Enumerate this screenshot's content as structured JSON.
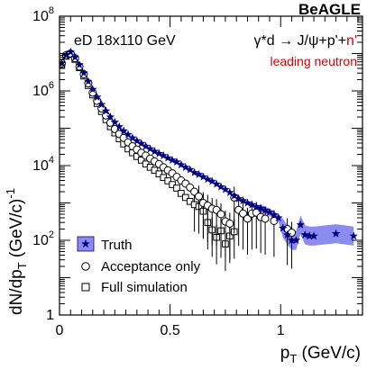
{
  "brand": "BeAGLE",
  "beam_label": "eD 18x110 GeV",
  "process_label": {
    "main": "γ*d → J/ψ+p'+",
    "suffix": "n'"
  },
  "selection_label": "leading neutron",
  "colors": {
    "truth_band": "#8c8cf0",
    "truth_marker": "#000080",
    "accent_red": "#dd0000",
    "axis": "#000000"
  },
  "chart_data": {
    "type": "scatter",
    "title": "",
    "xlabel": "p_T (GeV/c)",
    "ylabel": "dN/dp_T (GeV/c)^-1",
    "xlim": [
      0,
      1.37
    ],
    "ylim": [
      1,
      100000000
    ],
    "yscale": "log",
    "x_ticks": [
      0,
      0.5,
      1
    ],
    "x_tick_labels": [
      "0",
      "0.5",
      "1"
    ],
    "y_ticks": [
      1,
      100,
      10000,
      1000000,
      100000000
    ],
    "y_tick_labels": [
      "1",
      "10^2",
      "10^4",
      "10^6",
      "10^8"
    ],
    "legend_position": "bottom-left",
    "series": [
      {
        "name": "Truth",
        "marker": "star",
        "x": [
          0.01,
          0.03,
          0.05,
          0.07,
          0.09,
          0.11,
          0.13,
          0.15,
          0.17,
          0.19,
          0.21,
          0.23,
          0.25,
          0.27,
          0.29,
          0.31,
          0.33,
          0.35,
          0.37,
          0.39,
          0.41,
          0.43,
          0.45,
          0.47,
          0.49,
          0.51,
          0.53,
          0.55,
          0.57,
          0.59,
          0.61,
          0.63,
          0.65,
          0.67,
          0.69,
          0.71,
          0.73,
          0.75,
          0.77,
          0.79,
          0.81,
          0.83,
          0.85,
          0.87,
          0.89,
          0.91,
          0.93,
          0.95,
          0.97,
          0.99,
          1.01,
          1.03,
          1.05,
          1.07,
          1.09,
          1.11,
          1.13,
          1.15,
          1.25,
          1.33
        ],
        "y": [
          5500000,
          9000000,
          11000000,
          8000000,
          5000000,
          3000000,
          1800000,
          1100000,
          680000,
          430000,
          290000,
          200000,
          145000,
          110000,
          85000,
          68000,
          55000,
          46000,
          39000,
          33000,
          28000,
          24000,
          21000,
          18500,
          16000,
          14000,
          12500,
          10500,
          9000,
          7800,
          6500,
          5800,
          5000,
          4300,
          3800,
          3200,
          2700,
          2300,
          1900,
          1550,
          1300,
          1150,
          1000,
          900,
          800,
          720,
          640,
          560,
          480,
          400,
          210,
          140,
          100,
          100,
          260,
          140,
          130,
          130,
          150,
          130
        ]
      },
      {
        "name": "Acceptance only",
        "marker": "open-circle",
        "x": [
          0.01,
          0.03,
          0.05,
          0.07,
          0.09,
          0.11,
          0.13,
          0.15,
          0.17,
          0.19,
          0.21,
          0.23,
          0.25,
          0.27,
          0.29,
          0.31,
          0.33,
          0.35,
          0.37,
          0.39,
          0.41,
          0.43,
          0.45,
          0.47,
          0.49,
          0.51,
          0.53,
          0.55,
          0.57,
          0.59,
          0.61,
          0.63,
          0.65,
          0.67,
          0.69,
          0.71,
          0.73,
          0.75,
          0.77,
          0.79,
          0.81,
          0.83,
          0.85,
          0.87,
          0.89,
          0.91,
          0.93,
          0.97,
          1.03,
          1.05
        ],
        "y": [
          5500000,
          9000000,
          10000000,
          7500000,
          4500000,
          2800000,
          1600000,
          900000,
          540000,
          340000,
          220000,
          140000,
          95000,
          70000,
          55000,
          42000,
          33000,
          27000,
          22000,
          18500,
          15500,
          13000,
          11000,
          9000,
          7500,
          6200,
          5000,
          4000,
          3300,
          2600,
          2000,
          1500,
          1000,
          850,
          700,
          650,
          500,
          320,
          280,
          1400,
          650,
          520,
          380,
          520,
          550,
          420,
          380,
          330,
          200,
          160
        ]
      },
      {
        "name": "Full simulation",
        "marker": "open-square",
        "x": [
          0.01,
          0.03,
          0.05,
          0.07,
          0.09,
          0.11,
          0.13,
          0.15,
          0.17,
          0.19,
          0.21,
          0.23,
          0.25,
          0.27,
          0.29,
          0.31,
          0.33,
          0.35,
          0.37,
          0.39,
          0.41,
          0.43,
          0.45,
          0.47,
          0.49,
          0.51,
          0.53,
          0.55,
          0.57,
          0.59,
          0.61,
          0.63,
          0.65,
          0.67,
          0.69,
          0.71,
          0.73,
          0.75,
          0.77,
          0.79
        ],
        "y": [
          5000000,
          8500000,
          9500000,
          7000000,
          4200000,
          2500000,
          1400000,
          780000,
          460000,
          280000,
          170000,
          110000,
          75000,
          52000,
          38000,
          28000,
          22000,
          17500,
          14000,
          11000,
          9000,
          7500,
          6000,
          4800,
          3900,
          3100,
          2500,
          1800,
          1400,
          1100,
          900,
          800,
          600,
          300,
          190,
          120,
          180,
          80,
          130,
          170
        ]
      }
    ]
  }
}
